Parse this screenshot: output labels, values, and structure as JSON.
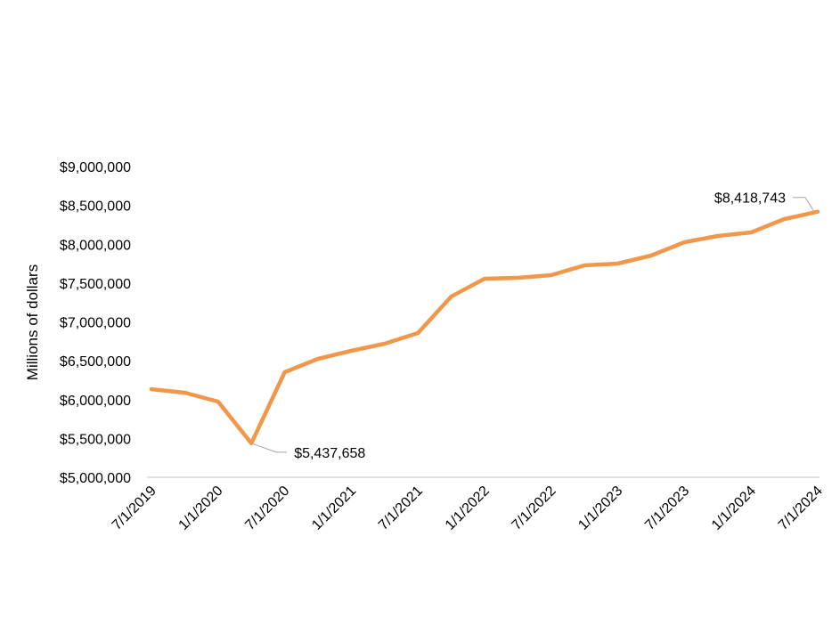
{
  "chart_data": {
    "type": "line",
    "title": "",
    "xlabel": "",
    "ylabel": "Millions of dollars",
    "ylim": [
      5000000,
      9000000
    ],
    "yticks": [
      5000000,
      5500000,
      6000000,
      6500000,
      7000000,
      7500000,
      8000000,
      8500000,
      9000000
    ],
    "ytick_labels": [
      "$5,000,000",
      "$5,500,000",
      "$6,000,000",
      "$6,500,000",
      "$7,000,000",
      "$7,500,000",
      "$8,000,000",
      "$8,500,000",
      "$9,000,000"
    ],
    "x": [
      "7/1/2019",
      "10/1/2019",
      "1/1/2020",
      "4/1/2020",
      "7/1/2020",
      "10/1/2020",
      "1/1/2021",
      "4/1/2021",
      "7/1/2021",
      "10/1/2021",
      "1/1/2022",
      "4/1/2022",
      "7/1/2022",
      "10/1/2022",
      "1/1/2023",
      "4/1/2023",
      "7/1/2023",
      "10/1/2023",
      "1/1/2024",
      "4/1/2024",
      "7/1/2024"
    ],
    "xtick_labels": [
      "7/1/2019",
      "1/1/2020",
      "7/1/2020",
      "1/1/2021",
      "7/1/2021",
      "1/1/2022",
      "7/1/2022",
      "1/1/2023",
      "7/1/2023",
      "1/1/2024",
      "7/1/2024"
    ],
    "series": [
      {
        "name": "Value",
        "color": "#F0974A",
        "values": [
          6134000,
          6089000,
          5974000,
          5437658,
          6352000,
          6524000,
          6627000,
          6719000,
          6857000,
          7327000,
          7556000,
          7567000,
          7602000,
          7728000,
          7751000,
          7854000,
          8026000,
          8106000,
          8152000,
          8324000,
          8418743
        ]
      }
    ],
    "annotations": [
      {
        "index": 3,
        "text": "$5,437,658"
      },
      {
        "index": 20,
        "text": "$8,418,743"
      }
    ],
    "grid": false,
    "legend": "none"
  }
}
